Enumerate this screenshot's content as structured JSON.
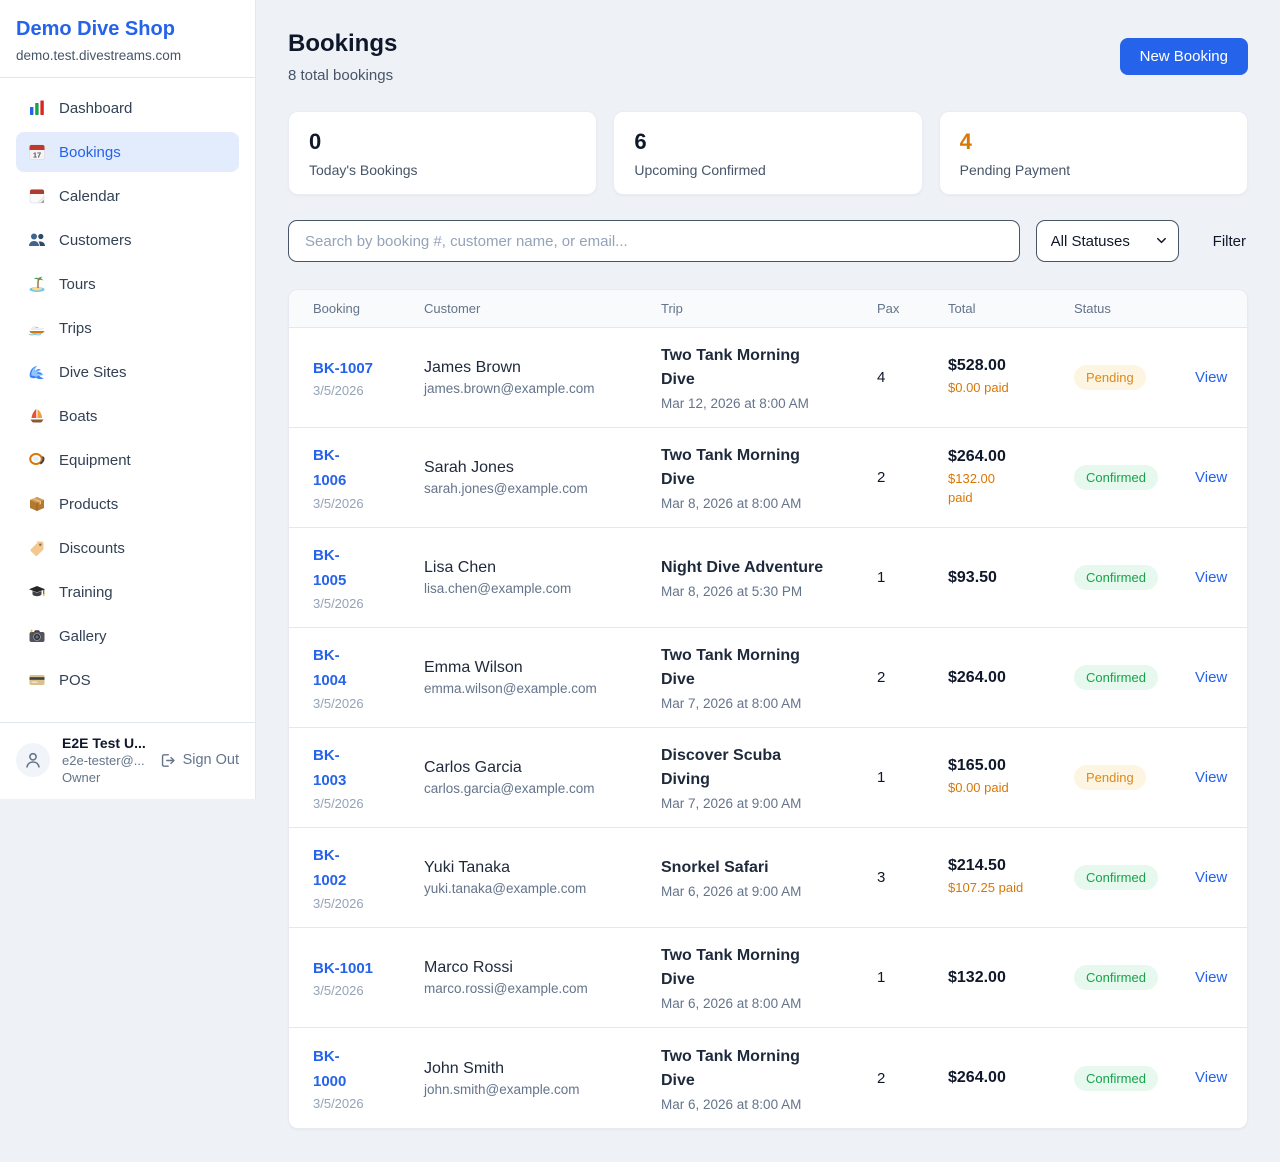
{
  "sidebar": {
    "brand": "Demo Dive Shop",
    "domain": "demo.test.divestreams.com",
    "items": [
      {
        "icon": "bar-chart-icon",
        "label": "Dashboard",
        "active": false
      },
      {
        "icon": "calendar-17-icon",
        "label": "Bookings",
        "active": true
      },
      {
        "icon": "calendar-icon",
        "label": "Calendar",
        "active": false
      },
      {
        "icon": "users-icon",
        "label": "Customers",
        "active": false
      },
      {
        "icon": "island-icon",
        "label": "Tours",
        "active": false
      },
      {
        "icon": "speedboat-icon",
        "label": "Trips",
        "active": false
      },
      {
        "icon": "wave-icon",
        "label": "Dive Sites",
        "active": false
      },
      {
        "icon": "sailboat-icon",
        "label": "Boats",
        "active": false
      },
      {
        "icon": "dive-mask-icon",
        "label": "Equipment",
        "active": false
      },
      {
        "icon": "package-icon",
        "label": "Products",
        "active": false
      },
      {
        "icon": "tag-icon",
        "label": "Discounts",
        "active": false
      },
      {
        "icon": "graduation-cap-icon",
        "label": "Training",
        "active": false
      },
      {
        "icon": "camera-icon",
        "label": "Gallery",
        "active": false
      },
      {
        "icon": "credit-card-icon",
        "label": "POS",
        "active": false
      }
    ],
    "user": {
      "name": "E2E Test U...",
      "email": "e2e-tester@...",
      "role": "Owner",
      "sign_out_label": "Sign Out"
    }
  },
  "header": {
    "title": "Bookings",
    "subtitle": "8 total bookings",
    "new_booking_label": "New Booking"
  },
  "stats": [
    {
      "value": "0",
      "label": "Today's Bookings",
      "accent": false
    },
    {
      "value": "6",
      "label": "Upcoming Confirmed",
      "accent": false
    },
    {
      "value": "4",
      "label": "Pending Payment",
      "accent": true
    }
  ],
  "filters": {
    "search_placeholder": "Search by booking #, customer name, or email...",
    "status_selected": "All Statuses",
    "filter_label": "Filter"
  },
  "table": {
    "columns": [
      "Booking",
      "Customer",
      "Trip",
      "Pax",
      "Total",
      "Status"
    ],
    "view_label": "View",
    "rows": [
      {
        "id": "BK-1007",
        "id_display": "BK-1007",
        "date": "3/5/2026",
        "customer": "James Brown",
        "email": "james.brown@example.com",
        "trip": "Two Tank Morning\nDive",
        "trip_datetime": "Mar 12, 2026 at 8:00 AM",
        "pax": "4",
        "total": "$528.00",
        "paid": "$0.00 paid",
        "status": "Pending"
      },
      {
        "id": "BK-1006",
        "id_display": "BK-\n1006",
        "date": "3/5/2026",
        "customer": "Sarah Jones",
        "email": "sarah.jones@example.com",
        "trip": "Two Tank Morning\nDive",
        "trip_datetime": "Mar 8, 2026 at 8:00 AM",
        "pax": "2",
        "total": "$264.00",
        "paid": "$132.00\npaid",
        "status": "Confirmed"
      },
      {
        "id": "BK-1005",
        "id_display": "BK-\n1005",
        "date": "3/5/2026",
        "customer": "Lisa Chen",
        "email": "lisa.chen@example.com",
        "trip": "Night Dive Adventure",
        "trip_datetime": "Mar 8, 2026 at 5:30 PM",
        "pax": "1",
        "total": "$93.50",
        "paid": null,
        "status": "Confirmed"
      },
      {
        "id": "BK-1004",
        "id_display": "BK-\n1004",
        "date": "3/5/2026",
        "customer": "Emma Wilson",
        "email": "emma.wilson@example.com",
        "trip": "Two Tank Morning\nDive",
        "trip_datetime": "Mar 7, 2026 at 8:00 AM",
        "pax": "2",
        "total": "$264.00",
        "paid": null,
        "status": "Confirmed"
      },
      {
        "id": "BK-1003",
        "id_display": "BK-\n1003",
        "date": "3/5/2026",
        "customer": "Carlos Garcia",
        "email": "carlos.garcia@example.com",
        "trip": "Discover Scuba\nDiving",
        "trip_datetime": "Mar 7, 2026 at 9:00 AM",
        "pax": "1",
        "total": "$165.00",
        "paid": "$0.00 paid",
        "status": "Pending"
      },
      {
        "id": "BK-1002",
        "id_display": "BK-\n1002",
        "date": "3/5/2026",
        "customer": "Yuki Tanaka",
        "email": "yuki.tanaka@example.com",
        "trip": "Snorkel Safari",
        "trip_datetime": "Mar 6, 2026 at 9:00 AM",
        "pax": "3",
        "total": "$214.50",
        "paid": "$107.25 paid",
        "status": "Confirmed"
      },
      {
        "id": "BK-1001",
        "id_display": "BK-1001",
        "date": "3/5/2026",
        "customer": "Marco Rossi",
        "email": "marco.rossi@example.com",
        "trip": "Two Tank Morning\nDive",
        "trip_datetime": "Mar 6, 2026 at 8:00 AM",
        "pax": "1",
        "total": "$132.00",
        "paid": null,
        "status": "Confirmed"
      },
      {
        "id": "BK-1000",
        "id_display": "BK-\n1000",
        "date": "3/5/2026",
        "customer": "John Smith",
        "email": "john.smith@example.com",
        "trip": "Two Tank Morning\nDive",
        "trip_datetime": "Mar 6, 2026 at 8:00 AM",
        "pax": "2",
        "total": "$264.00",
        "paid": null,
        "status": "Confirmed"
      }
    ]
  },
  "colors": {
    "accent_blue": "#2563eb",
    "pending_text": "#dd8a1b",
    "pending_bg": "#fdf5e1",
    "confirmed_text": "#16a34a",
    "confirmed_bg": "#e7f8ee",
    "orange": "#d97706",
    "active_nav_bg": "#e2ecfc"
  }
}
